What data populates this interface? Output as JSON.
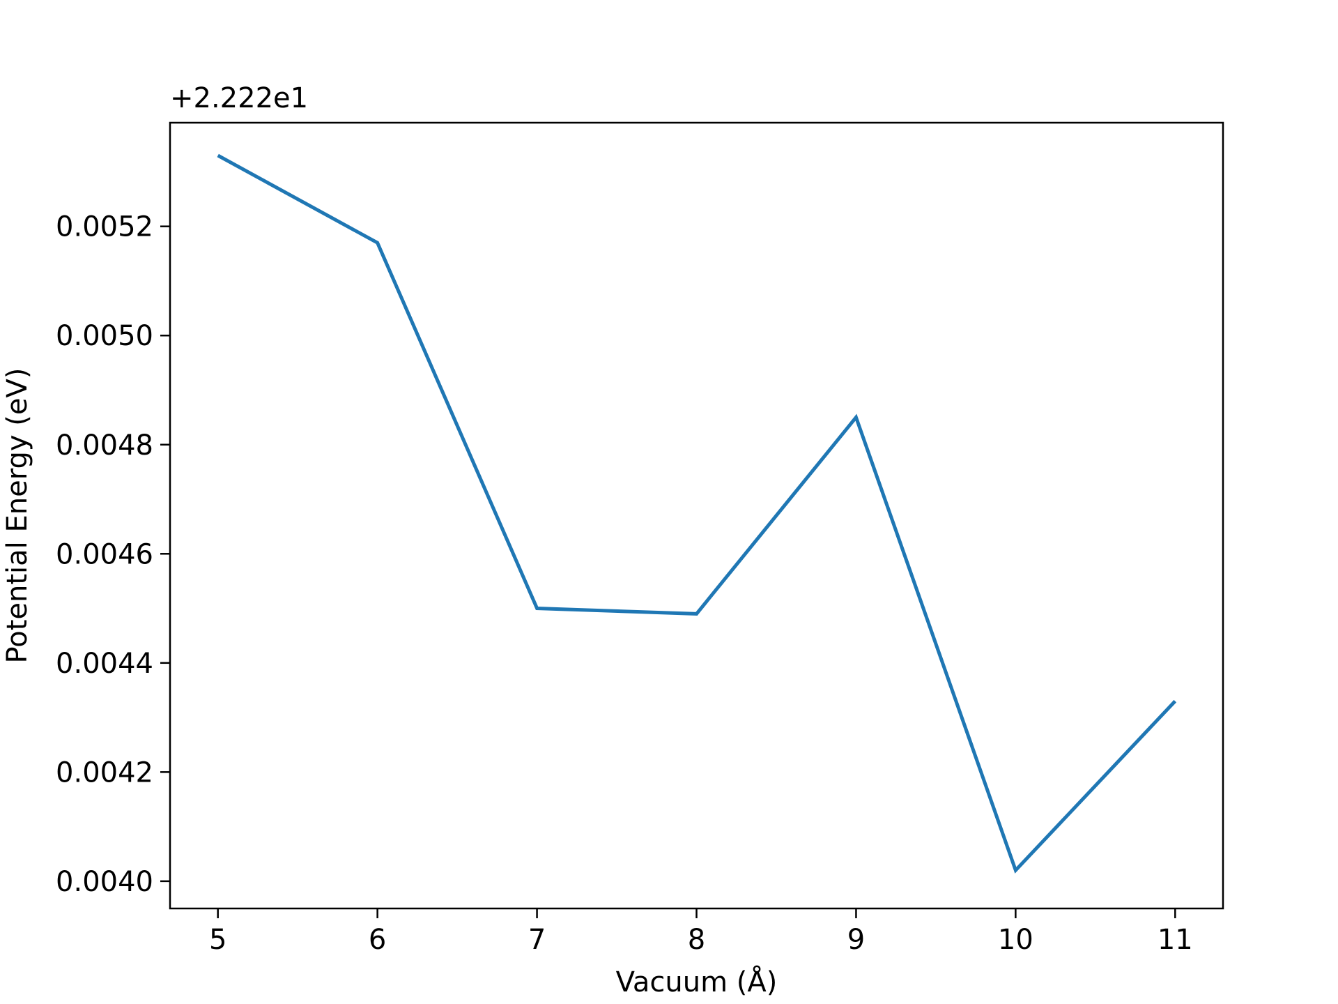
{
  "chart_data": {
    "type": "line",
    "title": "",
    "xlabel": "Vacuum (Å)",
    "ylabel": "Potential Energy (eV)",
    "offset_label": "+2.222e1",
    "x": [
      5,
      6,
      7,
      8,
      9,
      10,
      11
    ],
    "series": [
      {
        "values": [
          0.00533,
          0.00517,
          0.0045,
          0.00449,
          0.00485,
          0.00402,
          0.00433
        ]
      }
    ],
    "xticks": [
      5,
      6,
      7,
      8,
      9,
      10,
      11
    ],
    "xtick_labels": [
      "5",
      "6",
      "7",
      "8",
      "9",
      "10",
      "11"
    ],
    "yticks": [
      0.004,
      0.0042,
      0.0044,
      0.0046,
      0.0048,
      0.005,
      0.0052
    ],
    "ytick_labels": [
      "0.0040",
      "0.0042",
      "0.0044",
      "0.0046",
      "0.0048",
      "0.0050",
      "0.0052"
    ],
    "xlim": [
      4.7,
      11.3
    ],
    "ylim": [
      0.00395,
      0.00539
    ],
    "grid": false,
    "line_color": "#1f77b4"
  }
}
